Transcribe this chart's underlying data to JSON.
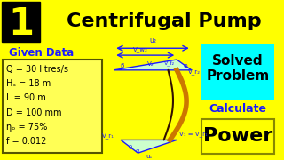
{
  "title": "Centrifugal Pump",
  "problem_num": "1",
  "given_data_label": "Given Data",
  "given_data_lines": [
    "Q = 30 litres/s",
    "Hₛ = 18 m",
    "L = 90 m",
    "D = 100 mm",
    "ηₒ = 75%",
    "f = 0.012"
  ],
  "solved_line1": "Solved",
  "solved_line2": "Problem",
  "calculate_label": "Calculate",
  "power_label": "Power",
  "bg_color": "#FFFF00",
  "box1_bg": "#000000",
  "num_color": "#FFFF00",
  "title_color": "#000000",
  "given_color": "#1a1aff",
  "data_box_bg": "#FFFF55",
  "data_box_border": "#555500",
  "solved_bg": "#00FFFF",
  "solved_color": "#000000",
  "power_bg": "#FFFF00",
  "power_border": "#888800",
  "power_color": "#000000",
  "calc_color": "#1a1aff",
  "diagram_color": "#1a1aff",
  "tri_fill": "#ccffcc",
  "blade_gold": "#CC7700",
  "blade_dark": "#331100"
}
